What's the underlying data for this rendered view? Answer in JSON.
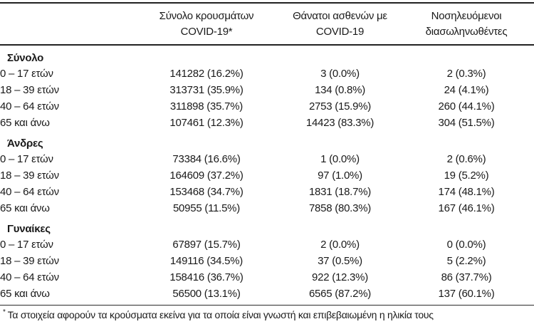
{
  "page": {
    "background_color": "#ffffff",
    "text_color": "#1a1a1a",
    "rule_color": "#222222"
  },
  "table": {
    "column_headers": [
      {
        "line1": "Σύνολο κρουσμάτων",
        "line2": "COVID-19*"
      },
      {
        "line1": "Θάνατοι ασθενών με",
        "line2": "COVID-19"
      },
      {
        "line1": "Νοσηλευόμενοι",
        "line2": "διασωληνωθέντες"
      }
    ],
    "sections": [
      {
        "label": "Σύνολο",
        "rows": [
          {
            "label": "0 – 17 ετών",
            "cases": "141282 (16.2%)",
            "deaths": "3 (0.0%)",
            "intubated": "2 (0.3%)"
          },
          {
            "label": "18 – 39 ετών",
            "cases": "313731 (35.9%)",
            "deaths": "134 (0.8%)",
            "intubated": "24 (4.1%)"
          },
          {
            "label": "40 – 64 ετών",
            "cases": "311898 (35.7%)",
            "deaths": "2753 (15.9%)",
            "intubated": "260 (44.1%)"
          },
          {
            "label": "65 και άνω",
            "cases": "107461 (12.3%)",
            "deaths": "14423 (83.3%)",
            "intubated": "304 (51.5%)"
          }
        ]
      },
      {
        "label": "Άνδρες",
        "rows": [
          {
            "label": "0 – 17 ετών",
            "cases": "73384 (16.6%)",
            "deaths": "1 (0.0%)",
            "intubated": "2 (0.6%)"
          },
          {
            "label": "18 – 39 ετών",
            "cases": "164609 (37.2%)",
            "deaths": "97 (1.0%)",
            "intubated": "19 (5.2%)"
          },
          {
            "label": "40 – 64 ετών",
            "cases": "153468 (34.7%)",
            "deaths": "1831 (18.7%)",
            "intubated": "174 (48.1%)"
          },
          {
            "label": "65 και άνω",
            "cases": "50955 (11.5%)",
            "deaths": "7858 (80.3%)",
            "intubated": "167 (46.1%)"
          }
        ]
      },
      {
        "label": "Γυναίκες",
        "rows": [
          {
            "label": "0 – 17 ετών",
            "cases": "67897 (15.7%)",
            "deaths": "2 (0.0%)",
            "intubated": "0 (0.0%)"
          },
          {
            "label": "18 – 39 ετών",
            "cases": "149116 (34.5%)",
            "deaths": "37 (0.5%)",
            "intubated": "5 (2.2%)"
          },
          {
            "label": "40 – 64 ετών",
            "cases": "158416 (36.7%)",
            "deaths": "922 (12.3%)",
            "intubated": "86 (37.7%)"
          },
          {
            "label": "65 και άνω",
            "cases": "56500 (13.1%)",
            "deaths": "6565 (87.2%)",
            "intubated": "137 (60.1%)"
          }
        ]
      }
    ],
    "footnote": {
      "marker": "*",
      "text": "Τα στοιχεία αφορούν τα κρούσματα εκείνα για τα οποία είναι γνωστή και επιβεβαιωμένη η ηλικία τους"
    }
  }
}
